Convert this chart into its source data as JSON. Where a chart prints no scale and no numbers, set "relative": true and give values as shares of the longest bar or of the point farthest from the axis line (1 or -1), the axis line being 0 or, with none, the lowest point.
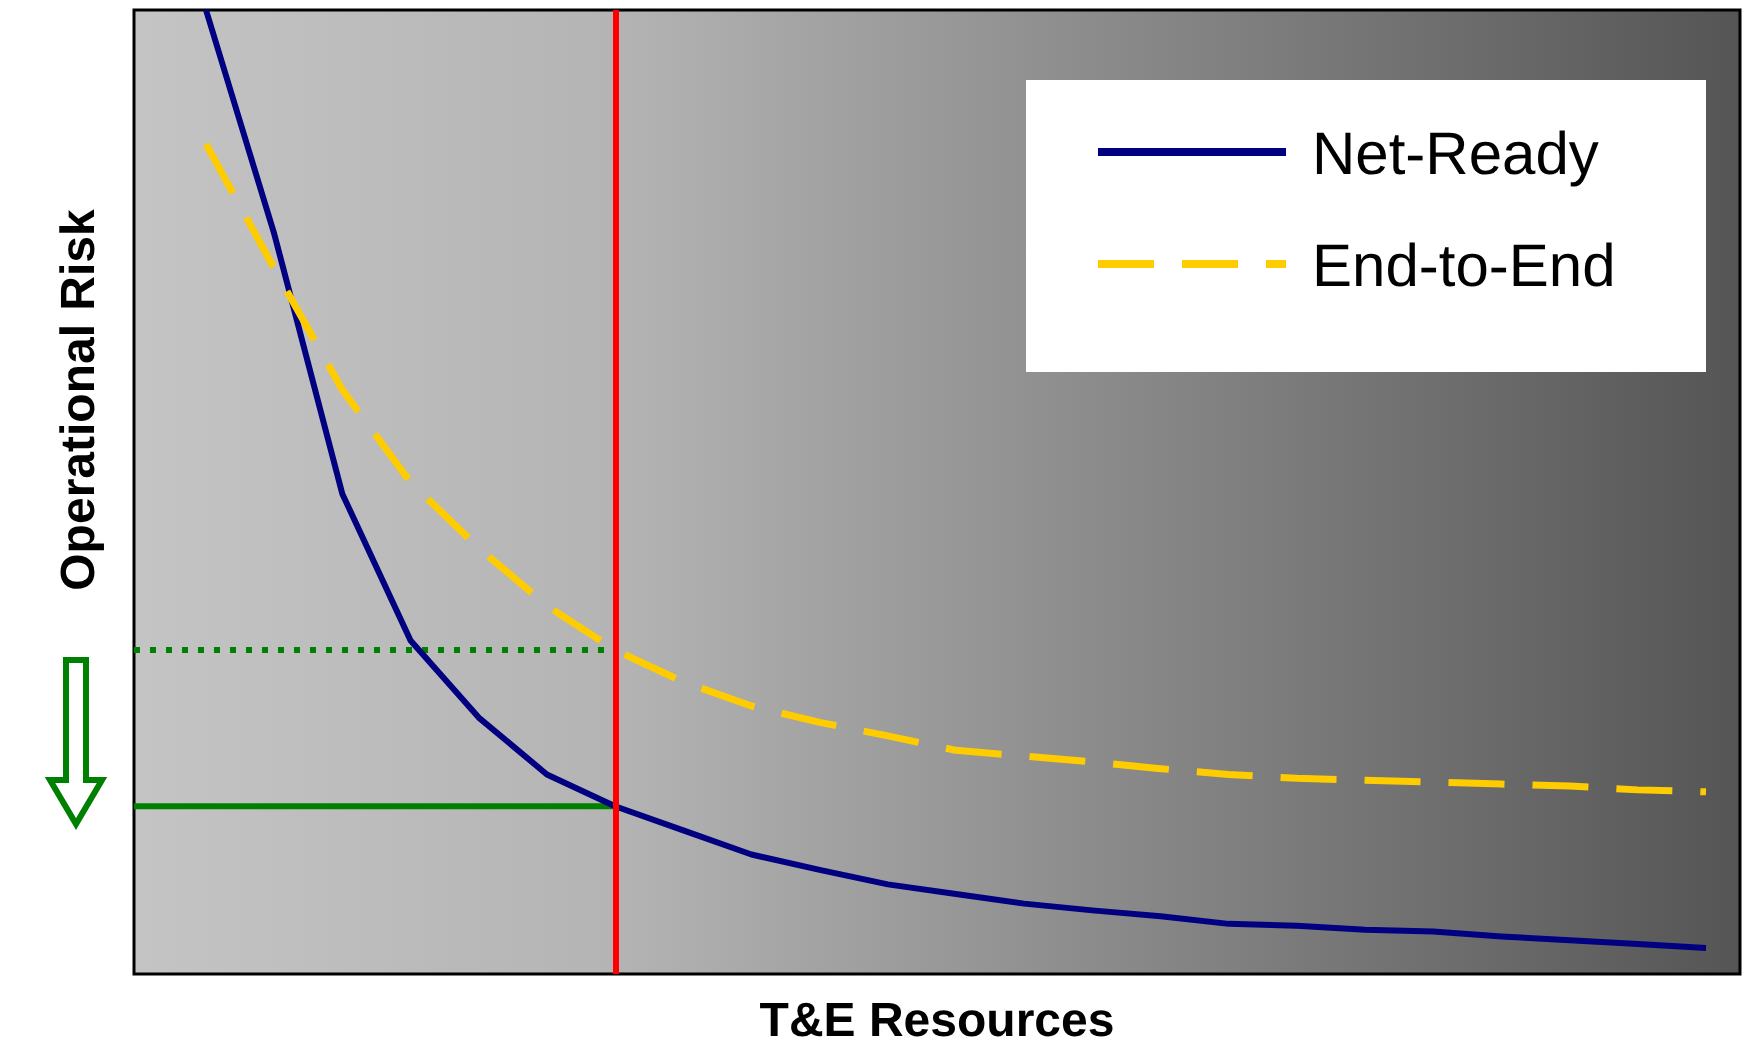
{
  "chart_data": {
    "type": "line",
    "relative": true,
    "xlabel": "T&E Resources",
    "ylabel": "Operational Risk",
    "legend": "top right",
    "marker": "none",
    "categories": [
      null,
      null,
      null,
      null,
      null,
      null,
      null,
      null,
      null,
      null,
      null,
      null,
      null,
      null,
      null,
      null,
      null,
      null,
      null,
      null,
      null,
      null,
      null
    ],
    "series": [
      {
        "name": "Net-Ready",
        "color": "#000080",
        "line_style": "solid",
        "values": [
          1.0,
          0.768,
          0.498,
          0.346,
          0.266,
          0.207,
          0.174,
          0.149,
          0.124,
          0.108,
          0.093,
          0.083,
          0.073,
          0.066,
          0.06,
          0.052,
          0.05,
          0.046,
          0.044,
          0.039,
          0.035,
          0.031,
          0.027
        ]
      },
      {
        "name": "End-to-End",
        "color": "#ffcc00",
        "line_style": "dashed",
        "values": [
          0.861,
          0.732,
          0.606,
          0.51,
          0.442,
          0.382,
          0.336,
          0.303,
          0.278,
          0.261,
          0.247,
          0.232,
          0.226,
          0.22,
          0.213,
          0.207,
          0.203,
          0.201,
          0.199,
          0.197,
          0.195,
          0.191,
          0.189
        ]
      }
    ],
    "ref_lines": [
      {
        "axis": "y",
        "value": 0.174,
        "color": "#008000",
        "line_style": "solid"
      },
      {
        "axis": "y",
        "value": 0.336,
        "color": "#008000",
        "line_style": "dotted"
      }
    ]
  }
}
